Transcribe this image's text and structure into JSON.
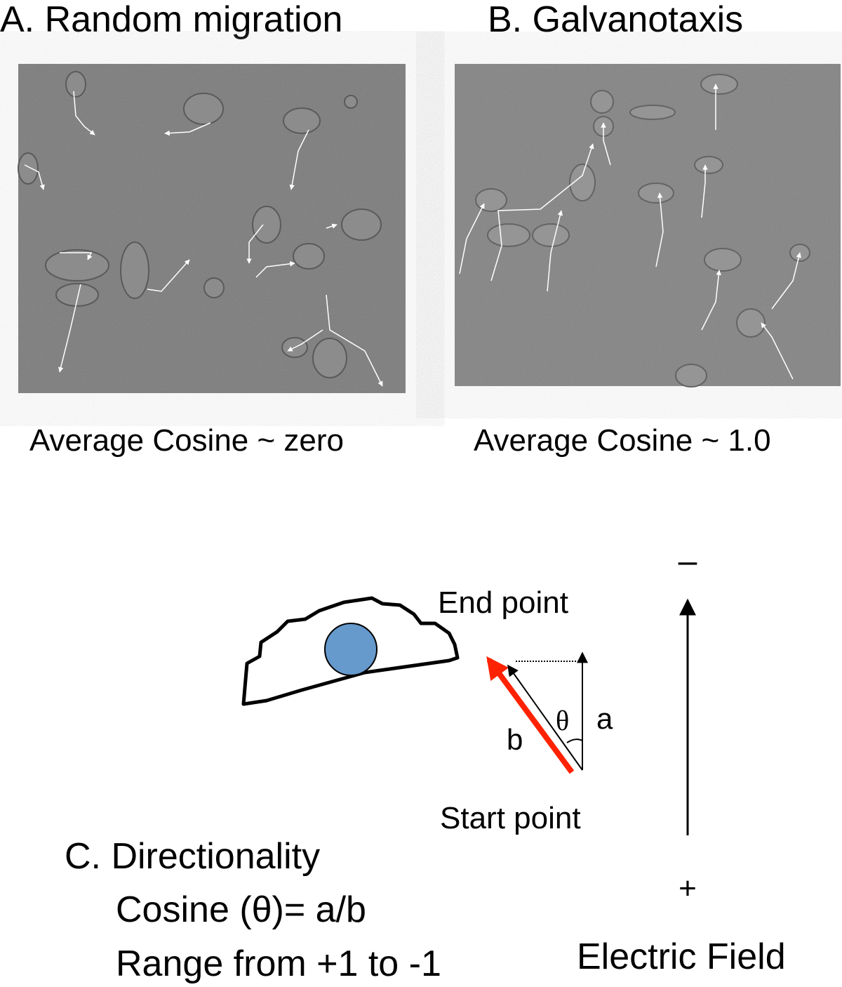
{
  "panel_a": {
    "title": "A. Random migration",
    "caption": "Average Cosine ~ zero"
  },
  "panel_b": {
    "title": "B. Galvanotaxis",
    "caption": "Average Cosine ~ 1.0"
  },
  "panel_c": {
    "title": "C. Directionality",
    "formula": "Cosine (θ)= a/b",
    "range": "Range from +1 to -1",
    "end_label": "End point",
    "start_label": "Start point",
    "theta_label": "θ",
    "a_label": "a",
    "b_label": "b",
    "minus_label": "–",
    "plus_label": "+",
    "field_label": "Electric Field"
  },
  "colors": {
    "nucleus": "#6699cc",
    "displacement_arrow": "#ff2200",
    "micrograph_bg": "#7a7a7a"
  }
}
